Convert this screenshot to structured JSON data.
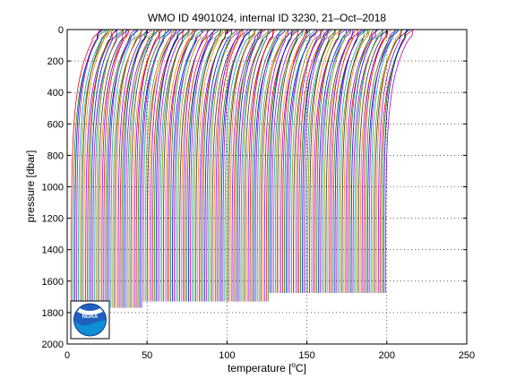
{
  "chart_data": {
    "type": "line",
    "title": "WMO ID 4901024, internal ID 3230, 21–Oct–2018",
    "xlabel": {
      "pre": "temperature [",
      "sup": "o",
      "post": "C]"
    },
    "ylabel": "pressure [dbar]",
    "xlim": [
      0,
      250
    ],
    "ylim": [
      0,
      2000
    ],
    "y_reversed": true,
    "grid": true,
    "xticks": [
      "0",
      "50",
      "100",
      "150",
      "200",
      "250"
    ],
    "xtick_values": [
      0,
      50,
      100,
      150,
      200,
      250
    ],
    "yticks": [
      "0",
      "200",
      "400",
      "600",
      "800",
      "1000",
      "1200",
      "1400",
      "1600",
      "1800",
      "2000"
    ],
    "ytick_values": [
      0,
      200,
      400,
      600,
      800,
      1000,
      1200,
      1400,
      1600,
      1800,
      2000
    ],
    "series_colors": [
      "#e8000a",
      "#008c00",
      "#0000ff",
      "#b000b0",
      "#00a0a0",
      "#8c8c00",
      "#333333",
      "#ff7f00",
      "#7f00ff"
    ],
    "profile_count": 175,
    "profile_offset_start": 0,
    "profile_offset_step": 1.13,
    "profile_surface_temp_base": 20,
    "profile_surface_temp_jitter": 2,
    "profile_deep_temp_base": 2.5,
    "profile_max_pressure_groups": [
      {
        "from": 0,
        "to": 20,
        "max_pressure": 1820
      },
      {
        "from": 20,
        "to": 40,
        "max_pressure": 1770
      },
      {
        "from": 40,
        "to": 110,
        "max_pressure": 1730
      },
      {
        "from": 110,
        "to": 175,
        "max_pressure": 1675
      }
    ]
  },
  "logo": {
    "text": "NOAA"
  }
}
